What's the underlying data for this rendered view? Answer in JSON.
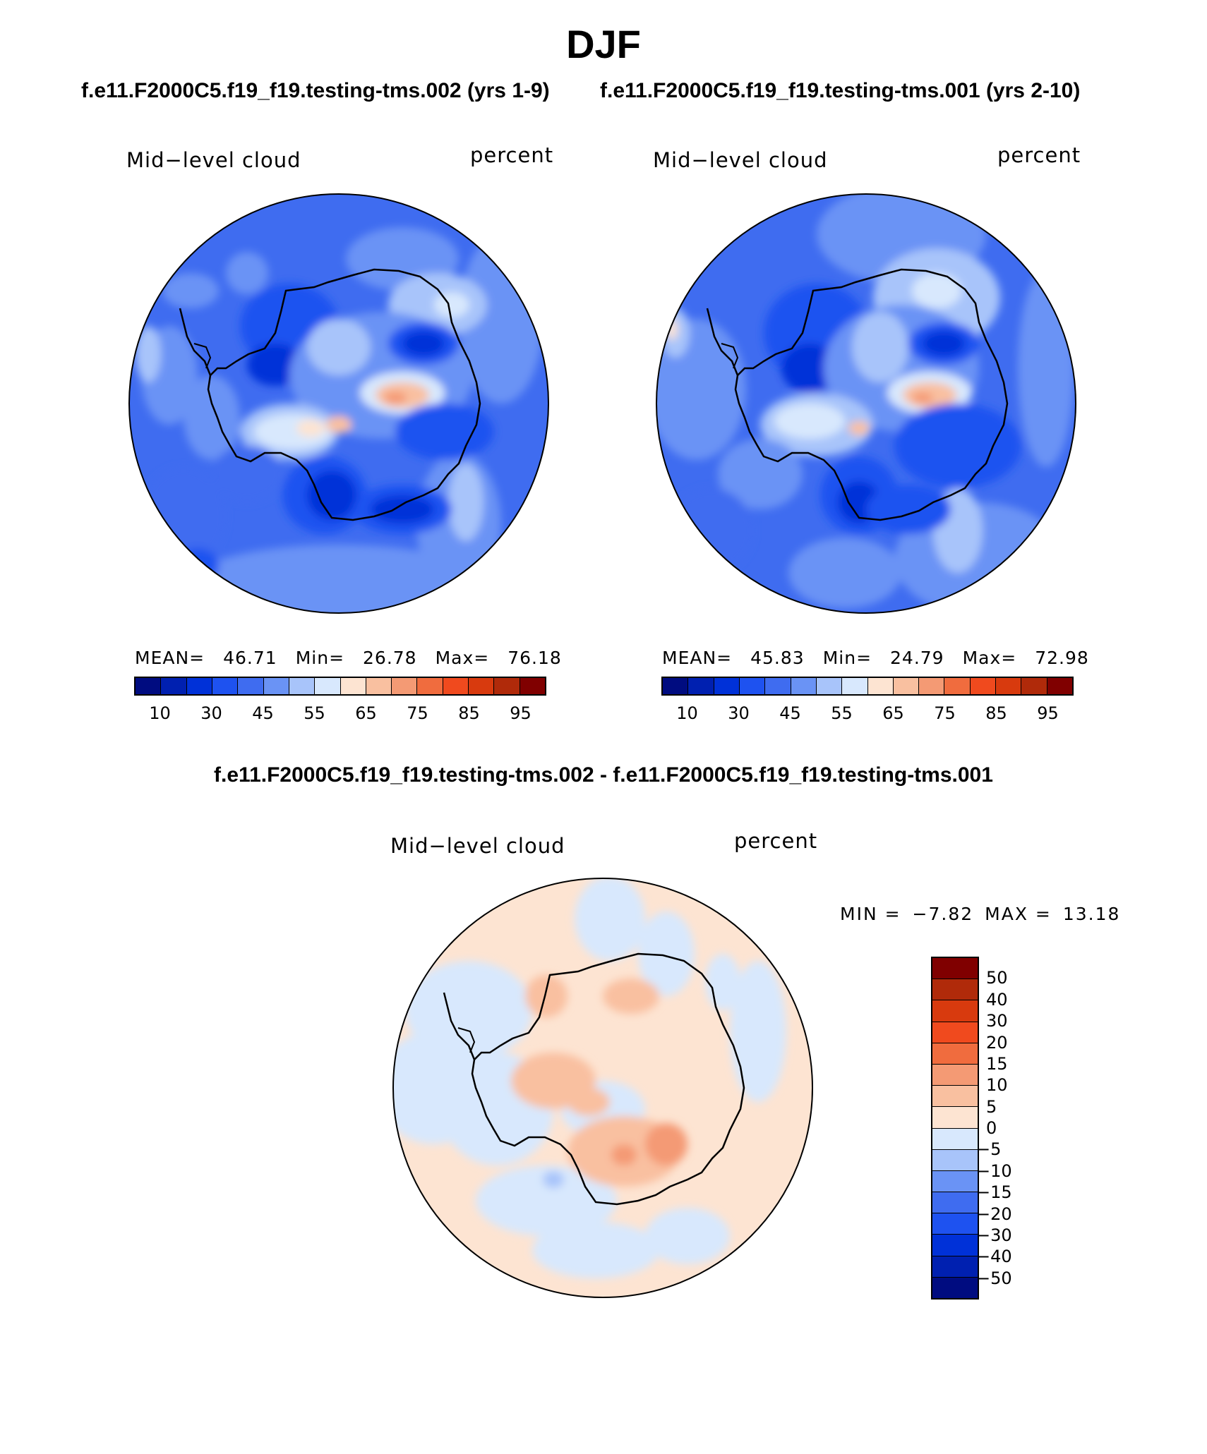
{
  "page": {
    "title": "DJF",
    "subtitle_left": "f.e11.F2000C5.f19_f19.testing-tms.002 (yrs 1-9)",
    "subtitle_right": "f.e11.F2000C5.f19_f19.testing-tms.001 (yrs 2-10)",
    "diff_title": "f.e11.F2000C5.f19_f19.testing-tms.002 - f.e11.F2000C5.f19_f19.testing-tms.001"
  },
  "panels": [
    {
      "variable": "Mid−level cloud",
      "units": "percent",
      "mean_label": "MEAN=",
      "mean": "46.71",
      "min_label": "Min=",
      "min": "26.78",
      "max_label": "Max=",
      "max": "76.18"
    },
    {
      "variable": "Mid−level cloud",
      "units": "percent",
      "mean_label": "MEAN=",
      "mean": "45.83",
      "min_label": "Min=",
      "min": "24.79",
      "max_label": "Max=",
      "max": "72.98"
    }
  ],
  "diff_panel": {
    "variable": "Mid−level cloud",
    "units": "percent",
    "min_label": "MIN =",
    "min": "−7.82",
    "max_label": "MAX =",
    "max": "13.18"
  },
  "colorbar_abs": {
    "colors": [
      "#000c80",
      "#0020b0",
      "#0031d8",
      "#1e52f0",
      "#3f6cf0",
      "#6a93f5",
      "#a8c4fa",
      "#d8e8fd",
      "#fde4d2",
      "#f9c0a0",
      "#f49a74",
      "#f06c3e",
      "#f04a1e",
      "#d83a0e",
      "#b02a0a",
      "#800000"
    ],
    "ticks": [
      "10",
      "30",
      "45",
      "55",
      "65",
      "75",
      "85",
      "95"
    ]
  },
  "colorbar_diff": {
    "colors": [
      "#800000",
      "#b02a0a",
      "#d83a0e",
      "#f04a1e",
      "#f06c3e",
      "#f49a74",
      "#f9c0a0",
      "#fde4d2",
      "#d8e8fd",
      "#a8c4fa",
      "#6a93f5",
      "#3f6cf0",
      "#1e52f0",
      "#0031d8",
      "#0020b0",
      "#000c80"
    ],
    "ticks": [
      "50",
      "40",
      "30",
      "20",
      "15",
      "10",
      "5",
      "0",
      "−5",
      "−10",
      "−15",
      "−20",
      "−30",
      "−40",
      "−50"
    ]
  }
}
